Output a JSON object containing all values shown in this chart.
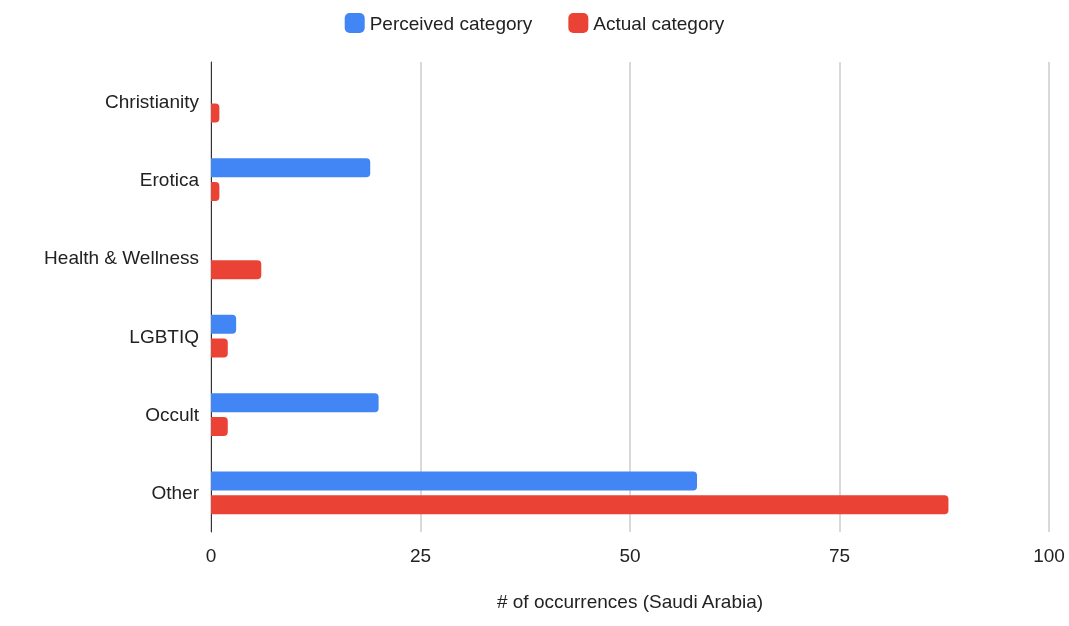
{
  "chart_data": {
    "type": "bar",
    "orientation": "horizontal",
    "xlabel": "# of occurrences (Saudi Arabia)",
    "categories": [
      "Christianity",
      "Erotica",
      "Health & Wellness",
      "LGBTIQ",
      "Occult",
      "Other"
    ],
    "series": [
      {
        "name": "Perceived category",
        "color": "#4285f4",
        "values": [
          0,
          19,
          0,
          3,
          20,
          58
        ]
      },
      {
        "name": "Actual category",
        "color": "#ea4335",
        "values": [
          1,
          1,
          6,
          2,
          2,
          88
        ]
      }
    ],
    "xlim": [
      0,
      100
    ],
    "xticks": [
      0,
      25,
      50,
      75,
      100
    ],
    "grid": "x",
    "legend": "top"
  }
}
